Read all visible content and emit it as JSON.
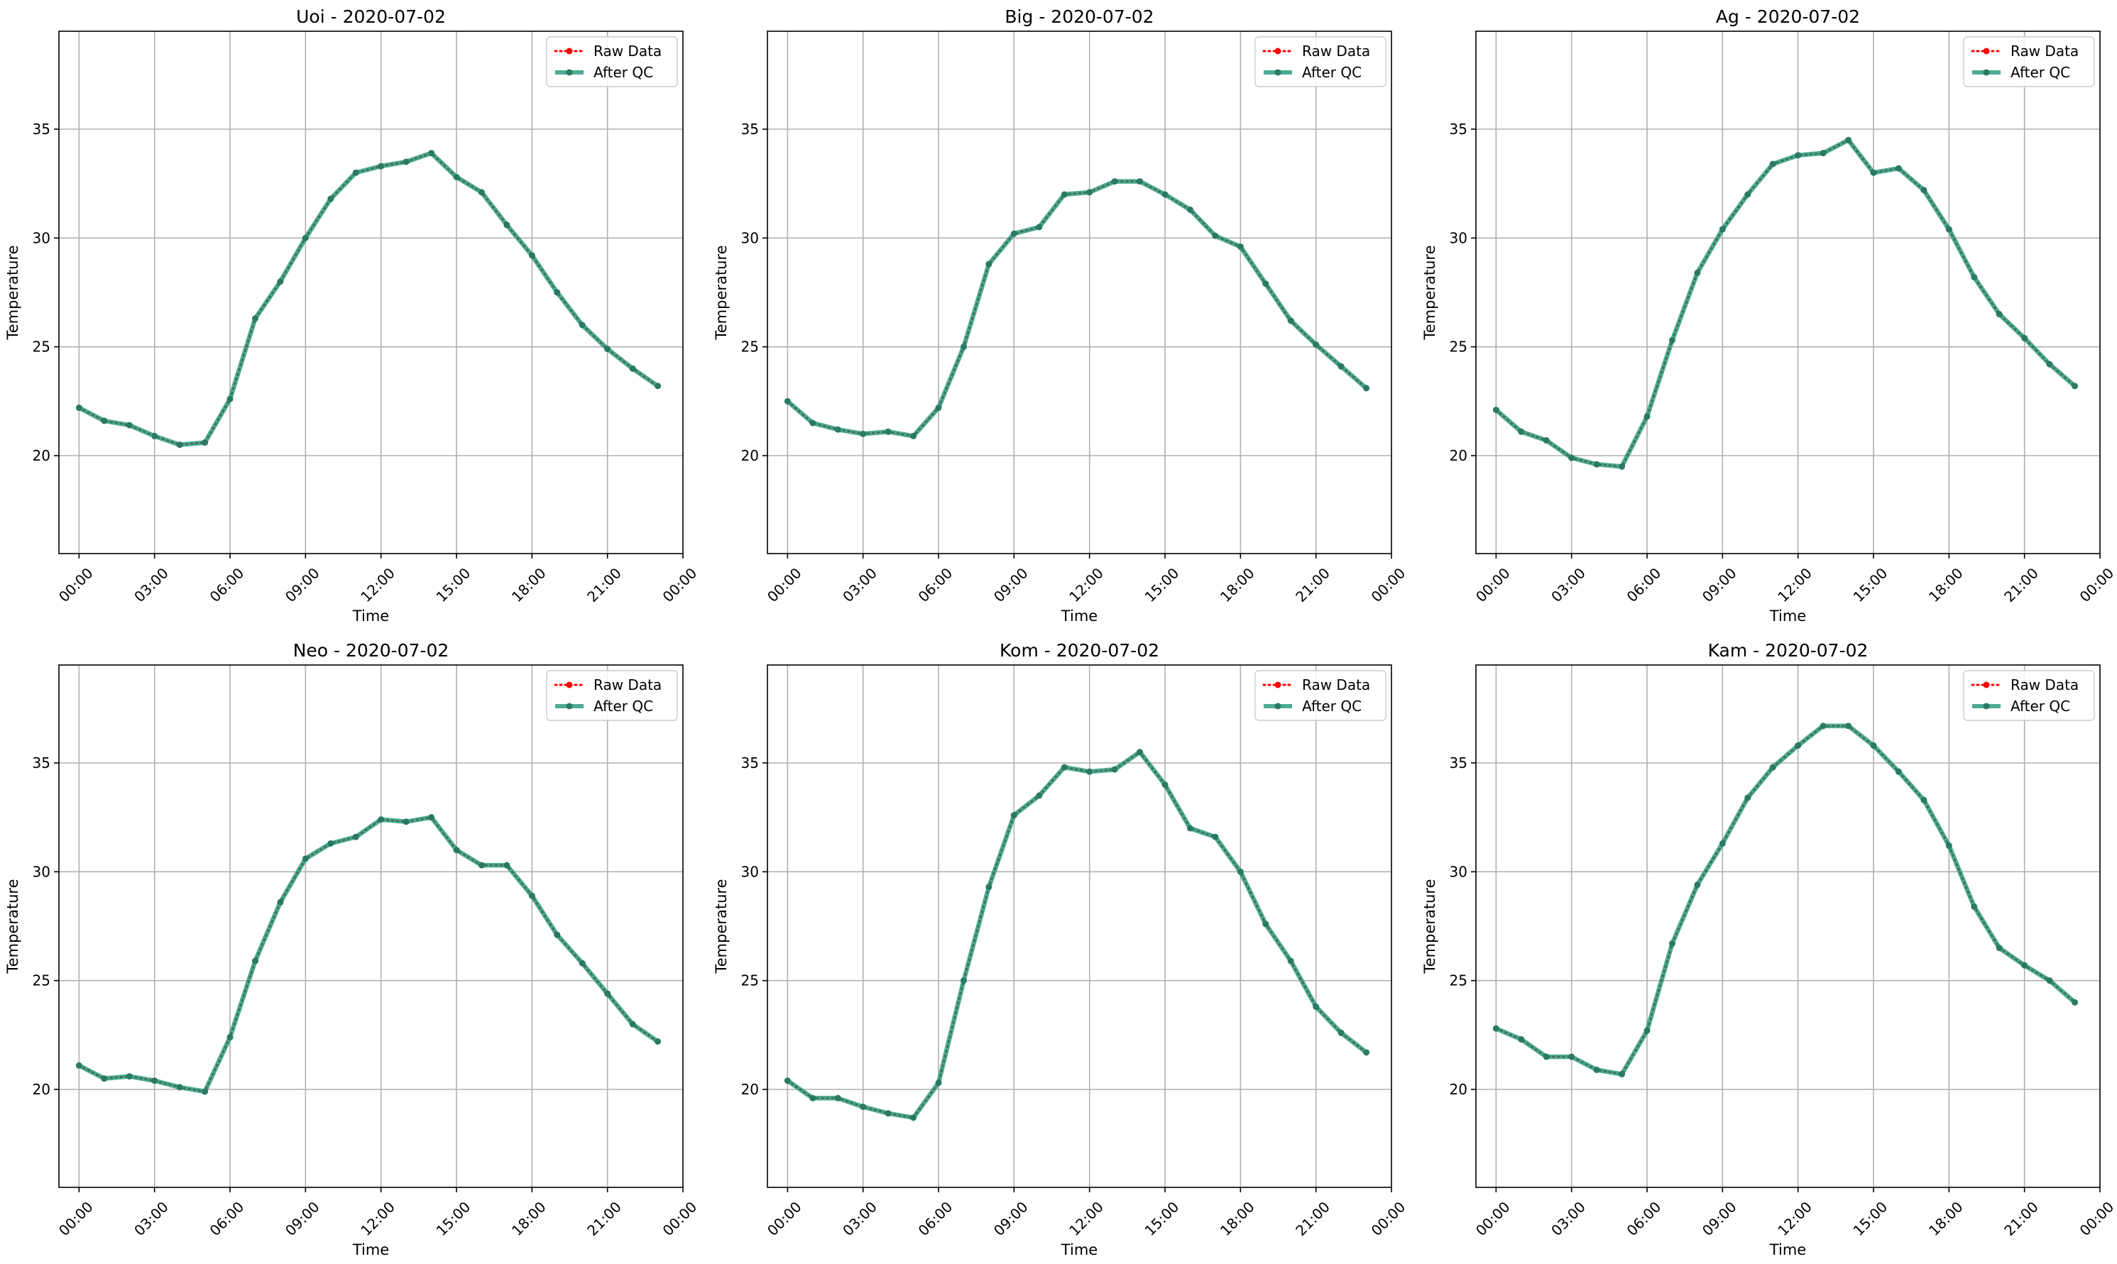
{
  "colors": {
    "raw": "#ff0000",
    "after_qc": "#2e9e80",
    "after_qc_marker": "#2a7a63",
    "grid": "#b0b0b0",
    "axis": "#000000"
  },
  "legend_location": "upper right",
  "chart_data": [
    {
      "type": "line",
      "title": "Uoi - 2020-07-02",
      "xlabel": "Time",
      "ylabel": "Temperature",
      "xlim": [
        -0.8,
        24.0
      ],
      "ylim": [
        15.5,
        39.5
      ],
      "grid": true,
      "xtick_positions": [
        0,
        3,
        6,
        9,
        12,
        15,
        18,
        21,
        24
      ],
      "xtick_labels": [
        "00:00",
        "03:00",
        "06:00",
        "09:00",
        "12:00",
        "15:00",
        "18:00",
        "21:00",
        "00:00"
      ],
      "ytick_values": [
        20,
        25,
        30,
        35
      ],
      "ytick_labels": [
        "20",
        "25",
        "30",
        "35"
      ],
      "x": [
        0,
        1,
        2,
        3,
        4,
        5,
        6,
        7,
        8,
        9,
        10,
        11,
        12,
        13,
        14,
        15,
        16,
        17,
        18,
        19,
        20,
        21,
        22,
        23
      ],
      "series": [
        {
          "name": "Raw Data",
          "values": [
            22.2,
            21.6,
            21.4,
            20.9,
            20.5,
            20.6,
            22.6,
            26.3,
            28.0,
            30.0,
            31.8,
            33.0,
            33.3,
            33.5,
            33.9,
            32.8,
            32.1,
            30.6,
            29.2,
            27.5,
            26.0,
            24.9,
            24.0,
            23.2
          ]
        },
        {
          "name": "After QC",
          "values": [
            22.2,
            21.6,
            21.4,
            20.9,
            20.5,
            20.6,
            22.6,
            26.3,
            28.0,
            30.0,
            31.8,
            33.0,
            33.3,
            33.5,
            33.9,
            32.8,
            32.1,
            30.6,
            29.2,
            27.5,
            26.0,
            24.9,
            24.0,
            23.2
          ]
        }
      ]
    },
    {
      "type": "line",
      "title": "Big - 2020-07-02",
      "xlabel": "Time",
      "ylabel": "Temperature",
      "xlim": [
        -0.8,
        24.0
      ],
      "ylim": [
        15.5,
        39.5
      ],
      "grid": true,
      "xtick_positions": [
        0,
        3,
        6,
        9,
        12,
        15,
        18,
        21,
        24
      ],
      "xtick_labels": [
        "00:00",
        "03:00",
        "06:00",
        "09:00",
        "12:00",
        "15:00",
        "18:00",
        "21:00",
        "00:00"
      ],
      "ytick_values": [
        20,
        25,
        30,
        35
      ],
      "ytick_labels": [
        "20",
        "25",
        "30",
        "35"
      ],
      "x": [
        0,
        1,
        2,
        3,
        4,
        5,
        6,
        7,
        8,
        9,
        10,
        11,
        12,
        13,
        14,
        15,
        16,
        17,
        18,
        19,
        20,
        21,
        22,
        23
      ],
      "series": [
        {
          "name": "Raw Data",
          "values": [
            22.5,
            21.5,
            21.2,
            21.0,
            21.1,
            20.9,
            22.2,
            25.0,
            28.8,
            30.2,
            30.5,
            32.0,
            32.1,
            32.6,
            32.6,
            32.0,
            31.3,
            30.1,
            29.6,
            27.9,
            26.2,
            25.1,
            24.1,
            23.1
          ]
        },
        {
          "name": "After QC",
          "values": [
            22.5,
            21.5,
            21.2,
            21.0,
            21.1,
            20.9,
            22.2,
            25.0,
            28.8,
            30.2,
            30.5,
            32.0,
            32.1,
            32.6,
            32.6,
            32.0,
            31.3,
            30.1,
            29.6,
            27.9,
            26.2,
            25.1,
            24.1,
            23.1
          ]
        }
      ]
    },
    {
      "type": "line",
      "title": "Ag - 2020-07-02",
      "xlabel": "Time",
      "ylabel": "Temperature",
      "xlim": [
        -0.8,
        24.0
      ],
      "ylim": [
        15.5,
        39.5
      ],
      "grid": true,
      "xtick_positions": [
        0,
        3,
        6,
        9,
        12,
        15,
        18,
        21,
        24
      ],
      "xtick_labels": [
        "00:00",
        "03:00",
        "06:00",
        "09:00",
        "12:00",
        "15:00",
        "18:00",
        "21:00",
        "00:00"
      ],
      "ytick_values": [
        20,
        25,
        30,
        35
      ],
      "ytick_labels": [
        "20",
        "25",
        "30",
        "35"
      ],
      "x": [
        0,
        1,
        2,
        3,
        4,
        5,
        6,
        7,
        8,
        9,
        10,
        11,
        12,
        13,
        14,
        15,
        16,
        17,
        18,
        19,
        20,
        21,
        22,
        23
      ],
      "series": [
        {
          "name": "Raw Data",
          "values": [
            22.1,
            21.1,
            20.7,
            19.9,
            19.6,
            19.5,
            21.8,
            25.3,
            28.4,
            30.4,
            32.0,
            33.4,
            33.8,
            33.9,
            34.5,
            33.0,
            33.2,
            32.2,
            30.4,
            28.2,
            26.5,
            25.4,
            24.2,
            23.2
          ]
        },
        {
          "name": "After QC",
          "values": [
            22.1,
            21.1,
            20.7,
            19.9,
            19.6,
            19.5,
            21.8,
            25.3,
            28.4,
            30.4,
            32.0,
            33.4,
            33.8,
            33.9,
            34.5,
            33.0,
            33.2,
            32.2,
            30.4,
            28.2,
            26.5,
            25.4,
            24.2,
            23.2
          ]
        }
      ]
    },
    {
      "type": "line",
      "title": "Neo - 2020-07-02",
      "xlabel": "Time",
      "ylabel": "Temperature",
      "xlim": [
        -0.8,
        24.0
      ],
      "ylim": [
        15.5,
        39.5
      ],
      "grid": true,
      "xtick_positions": [
        0,
        3,
        6,
        9,
        12,
        15,
        18,
        21,
        24
      ],
      "xtick_labels": [
        "00:00",
        "03:00",
        "06:00",
        "09:00",
        "12:00",
        "15:00",
        "18:00",
        "21:00",
        "00:00"
      ],
      "ytick_values": [
        20,
        25,
        30,
        35
      ],
      "ytick_labels": [
        "20",
        "25",
        "30",
        "35"
      ],
      "x": [
        0,
        1,
        2,
        3,
        4,
        5,
        6,
        7,
        8,
        9,
        10,
        11,
        12,
        13,
        14,
        15,
        16,
        17,
        18,
        19,
        20,
        21,
        22,
        23
      ],
      "series": [
        {
          "name": "Raw Data",
          "values": [
            21.1,
            20.5,
            20.6,
            20.4,
            20.1,
            19.9,
            22.4,
            25.9,
            28.6,
            30.6,
            31.3,
            31.6,
            32.4,
            32.3,
            32.5,
            31.0,
            30.3,
            30.3,
            28.9,
            27.1,
            25.8,
            24.4,
            23.0,
            22.2
          ]
        },
        {
          "name": "After QC",
          "values": [
            21.1,
            20.5,
            20.6,
            20.4,
            20.1,
            19.9,
            22.4,
            25.9,
            28.6,
            30.6,
            31.3,
            31.6,
            32.4,
            32.3,
            32.5,
            31.0,
            30.3,
            30.3,
            28.9,
            27.1,
            25.8,
            24.4,
            23.0,
            22.2
          ]
        }
      ]
    },
    {
      "type": "line",
      "title": "Kom - 2020-07-02",
      "xlabel": "Time",
      "ylabel": "Temperature",
      "xlim": [
        -0.8,
        24.0
      ],
      "ylim": [
        15.5,
        39.5
      ],
      "grid": true,
      "xtick_positions": [
        0,
        3,
        6,
        9,
        12,
        15,
        18,
        21,
        24
      ],
      "xtick_labels": [
        "00:00",
        "03:00",
        "06:00",
        "09:00",
        "12:00",
        "15:00",
        "18:00",
        "21:00",
        "00:00"
      ],
      "ytick_values": [
        20,
        25,
        30,
        35
      ],
      "ytick_labels": [
        "20",
        "25",
        "30",
        "35"
      ],
      "x": [
        0,
        1,
        2,
        3,
        4,
        5,
        6,
        7,
        8,
        9,
        10,
        11,
        12,
        13,
        14,
        15,
        16,
        17,
        18,
        19,
        20,
        21,
        22,
        23
      ],
      "series": [
        {
          "name": "Raw Data",
          "values": [
            20.4,
            19.6,
            19.6,
            19.2,
            18.9,
            18.7,
            20.3,
            25.0,
            29.3,
            32.6,
            33.5,
            34.8,
            34.6,
            34.7,
            35.5,
            34.0,
            32.0,
            31.6,
            30.0,
            27.6,
            25.9,
            23.8,
            22.6,
            21.7
          ]
        },
        {
          "name": "After QC",
          "values": [
            20.4,
            19.6,
            19.6,
            19.2,
            18.9,
            18.7,
            20.3,
            25.0,
            29.3,
            32.6,
            33.5,
            34.8,
            34.6,
            34.7,
            35.5,
            34.0,
            32.0,
            31.6,
            30.0,
            27.6,
            25.9,
            23.8,
            22.6,
            21.7
          ]
        }
      ]
    },
    {
      "type": "line",
      "title": "Kam - 2020-07-02",
      "xlabel": "Time",
      "ylabel": "Temperature",
      "xlim": [
        -0.8,
        24.0
      ],
      "ylim": [
        15.5,
        39.5
      ],
      "grid": true,
      "xtick_positions": [
        0,
        3,
        6,
        9,
        12,
        15,
        18,
        21,
        24
      ],
      "xtick_labels": [
        "00:00",
        "03:00",
        "06:00",
        "09:00",
        "12:00",
        "15:00",
        "18:00",
        "21:00",
        "00:00"
      ],
      "ytick_values": [
        20,
        25,
        30,
        35
      ],
      "ytick_labels": [
        "20",
        "25",
        "30",
        "35"
      ],
      "x": [
        0,
        1,
        2,
        3,
        4,
        5,
        6,
        7,
        8,
        9,
        10,
        11,
        12,
        13,
        14,
        15,
        16,
        17,
        18,
        19,
        20,
        21,
        22,
        23
      ],
      "series": [
        {
          "name": "Raw Data",
          "values": [
            22.8,
            22.3,
            21.5,
            21.5,
            20.9,
            20.7,
            22.7,
            26.7,
            29.4,
            31.3,
            33.4,
            34.8,
            35.8,
            36.7,
            36.7,
            35.8,
            34.6,
            33.3,
            31.2,
            28.4,
            26.5,
            25.7,
            25.0,
            24.0
          ]
        },
        {
          "name": "After QC",
          "values": [
            22.8,
            22.3,
            21.5,
            21.5,
            20.9,
            20.7,
            22.7,
            26.7,
            29.4,
            31.3,
            33.4,
            34.8,
            35.8,
            36.7,
            36.7,
            35.8,
            34.6,
            33.3,
            31.2,
            28.4,
            26.5,
            25.7,
            25.0,
            24.0
          ]
        }
      ]
    }
  ]
}
